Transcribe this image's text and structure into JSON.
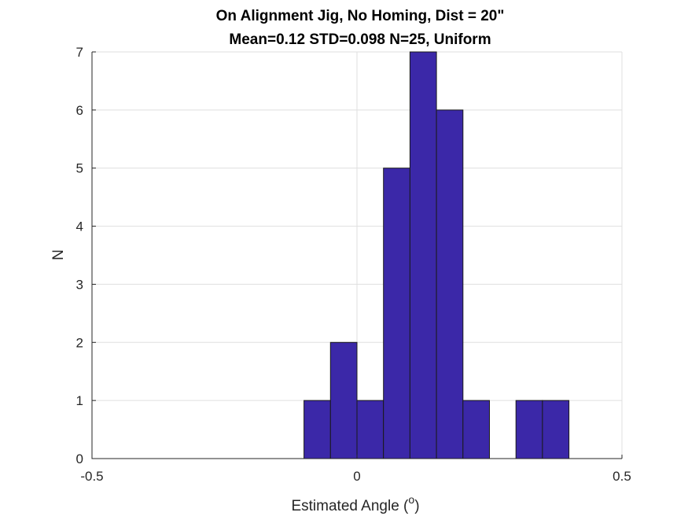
{
  "chart_data": {
    "type": "bar",
    "title": [
      "On Alignment Jig, No Homing, Dist = 20\"",
      "Mean=0.12 STD=0.098 N=25, Uniform"
    ],
    "xlabel": "Estimated Angle (",
    "xlabel_superscript": "o",
    "xlabel_suffix": ")",
    "ylabel": "N",
    "xlim": [
      -0.5,
      0.5
    ],
    "ylim": [
      0,
      7
    ],
    "xticks": [
      -0.5,
      0,
      0.5
    ],
    "xtick_labels": [
      "-0.5",
      "0",
      "0.5"
    ],
    "yticks": [
      0,
      1,
      2,
      3,
      4,
      5,
      6,
      7
    ],
    "ytick_labels": [
      "0",
      "1",
      "2",
      "3",
      "4",
      "5",
      "6",
      "7"
    ],
    "grid": true,
    "bin_width": 0.05,
    "bins": [
      {
        "x0": -0.1,
        "x1": -0.05,
        "count": 1
      },
      {
        "x0": -0.05,
        "x1": 0.0,
        "count": 2
      },
      {
        "x0": 0.0,
        "x1": 0.05,
        "count": 1
      },
      {
        "x0": 0.05,
        "x1": 0.1,
        "count": 5
      },
      {
        "x0": 0.1,
        "x1": 0.15,
        "count": 7
      },
      {
        "x0": 0.15,
        "x1": 0.2,
        "count": 6
      },
      {
        "x0": 0.2,
        "x1": 0.25,
        "count": 1
      },
      {
        "x0": 0.3,
        "x1": 0.35,
        "count": 1
      },
      {
        "x0": 0.35,
        "x1": 0.4,
        "count": 1
      }
    ],
    "bar_color": "#3b28a8",
    "bar_edge_color": "#1a1a1a"
  }
}
